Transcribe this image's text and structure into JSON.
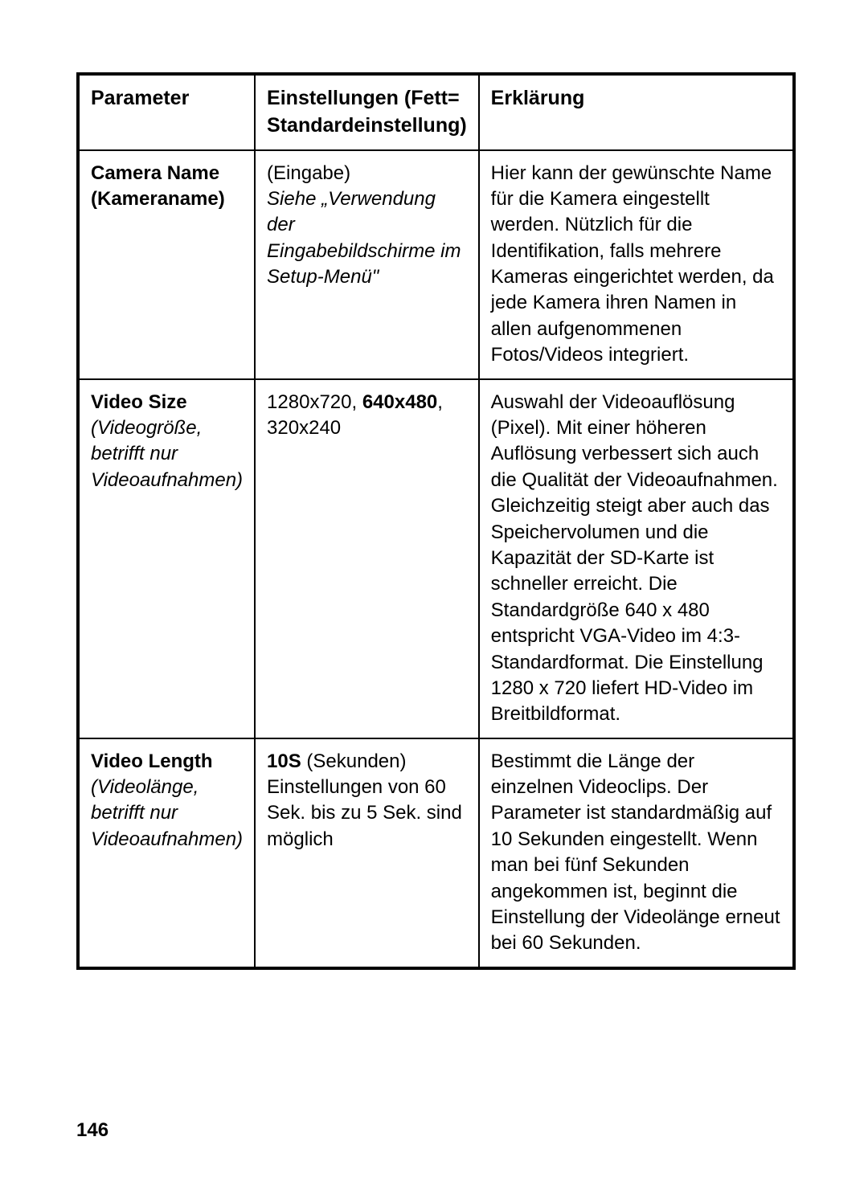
{
  "table": {
    "headers": {
      "col1": "Parameter",
      "col2_bold": "Einstellungen",
      "col2_rest": " (Fett= Standardeinstellung)",
      "col3": "Erklärung"
    },
    "rows": [
      {
        "param_bold": "Camera Name (Kameraname)",
        "param_italic": "",
        "setting_plain1": "(Eingabe)",
        "setting_italic": "Siehe „Verwendung der Eingabebildschirme im Setup-Menü\"",
        "setting_bold": "",
        "setting_plain2": "",
        "explanation": "Hier kann der gewünschte Name für die Kamera eingestellt werden. Nützlich für die Identifikation, falls mehrere Kameras eingerichtet werden, da jede Kamera ihren Namen in allen aufgenommenen Fotos/Videos integriert."
      },
      {
        "param_bold": "Video Size",
        "param_italic": "(Videogröße, betrifft nur Videoaufnahmen)",
        "setting_plain1": "1280x720, ",
        "setting_bold": "640x480",
        "setting_plain2": ", 320x240",
        "setting_italic": "",
        "explanation": "Auswahl der Videoauflösung (Pixel). Mit einer höheren Auflösung verbessert sich auch die Qualität der Videoaufnahmen. Gleichzeitig steigt aber auch das Speichervolumen und die Kapazität der SD-Karte ist schneller erreicht. Die Standardgröße 640 x 480 entspricht VGA-Video im 4:3-Standardformat. Die Einstellung 1280 x 720 liefert HD-Video im Breitbildformat."
      },
      {
        "param_bold": "Video Length",
        "param_italic": "(Videolänge, betrifft nur Videoaufnahmen)",
        "setting_bold": "10S",
        "setting_plain1": "",
        "setting_plain2": " (Sekunden) Einstellungen von 60 Sek. bis zu 5 Sek. sind möglich",
        "setting_italic": "",
        "explanation": "Bestimmt die Länge der einzelnen Videoclips. Der Parameter ist standardmäßig auf 10 Sekunden eingestellt. Wenn man bei fünf Sekunden angekommen ist, beginnt die Einstellung der Videolänge erneut bei 60 Sekunden."
      }
    ]
  },
  "page_number": "146"
}
